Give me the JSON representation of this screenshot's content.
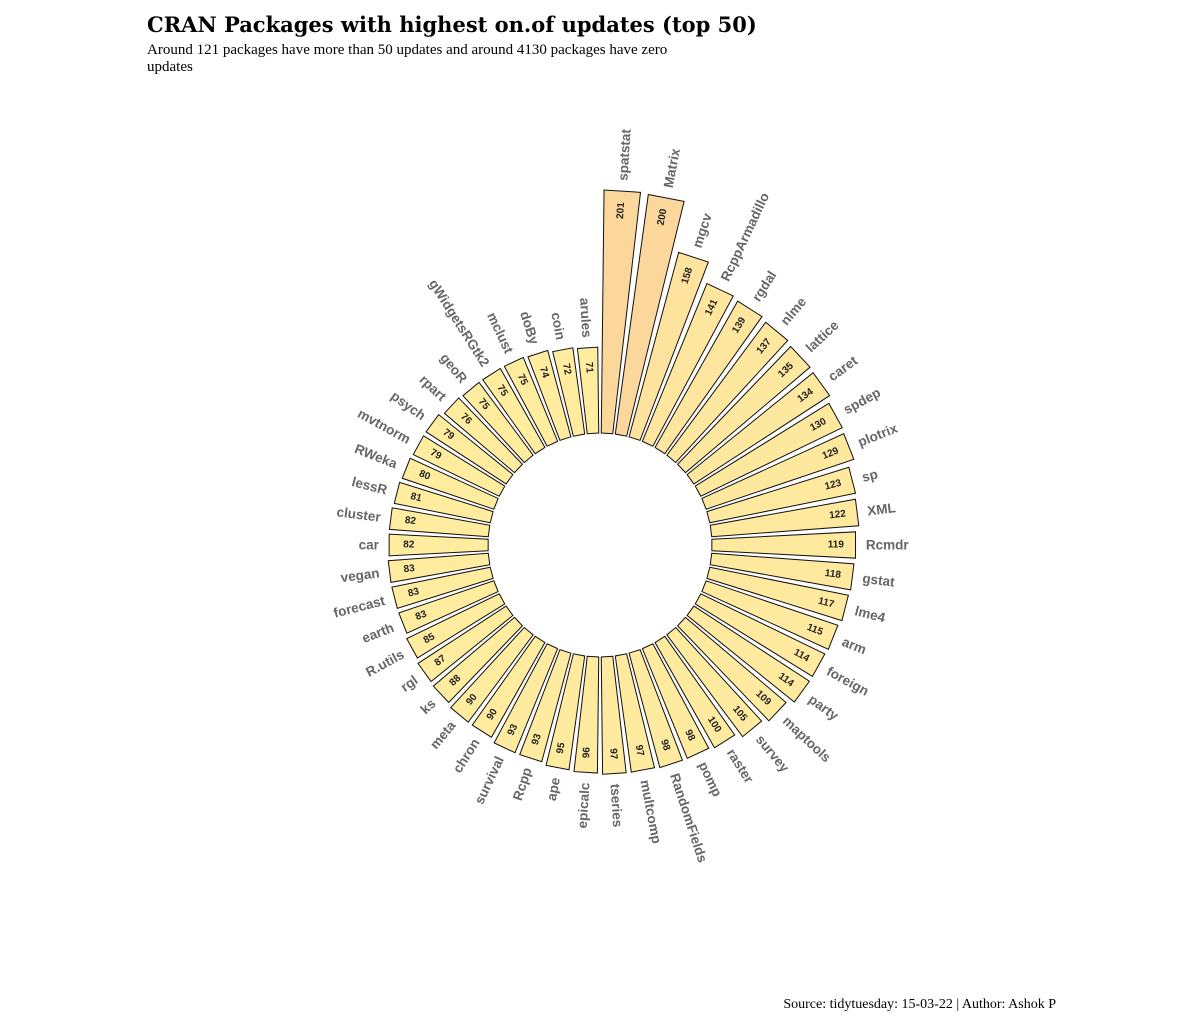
{
  "chart_data": {
    "type": "bar",
    "coord": "polar",
    "title": "CRAN Packages with highest on.of updates (top 50)",
    "subtitle": "Around 121 packages have more than 50 updates and around 4130 packages have zero updates",
    "caption": "Source: tidytuesday: 15-03-22 | Author: Ashok P",
    "categories": [
      "spatstat",
      "Matrix",
      "mgcv",
      "RcppArmadillo",
      "rgdal",
      "nlme",
      "lattice",
      "caret",
      "spdep",
      "plotrix",
      "sp",
      "XML",
      "Rcmdr",
      "gstat",
      "lme4",
      "arm",
      "foreign",
      "party",
      "maptools",
      "survey",
      "raster",
      "pomp",
      "RandomFields",
      "multcomp",
      "tseries",
      "epicalc",
      "ape",
      "Rcpp",
      "survival",
      "chron",
      "meta",
      "ks",
      "rgl",
      "R.utils",
      "earth",
      "forecast",
      "vegan",
      "car",
      "cluster",
      "lessR",
      "RWeka",
      "mvtnorm",
      "psych",
      "rpart",
      "geoR",
      "gWidgetsRGtk2",
      "mclust",
      "doBy",
      "coin",
      "arules"
    ],
    "values": [
      201,
      200,
      158,
      141,
      139,
      137,
      135,
      134,
      130,
      129,
      123,
      122,
      119,
      118,
      117,
      115,
      114,
      114,
      109,
      105,
      100,
      98,
      98,
      97,
      97,
      96,
      95,
      93,
      93,
      90,
      90,
      88,
      87,
      85,
      83,
      83,
      83,
      82,
      82,
      81,
      80,
      79,
      79,
      76,
      75,
      75,
      75,
      74,
      72,
      71
    ],
    "colors": {
      "low": "#FFEC9F",
      "high": "#FCD79C",
      "stroke": "#111111"
    },
    "xlabel": "",
    "ylabel": "",
    "grid": false,
    "legend": "none"
  }
}
